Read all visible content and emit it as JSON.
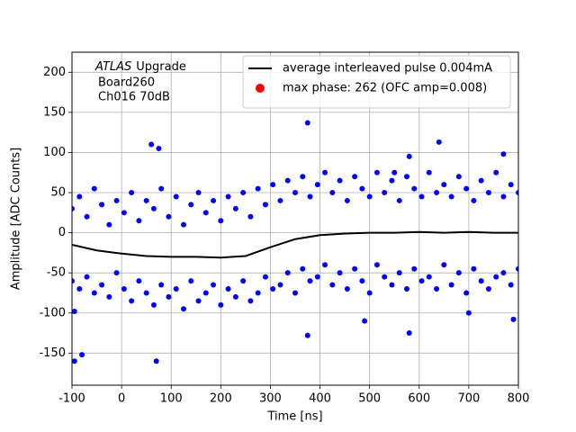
{
  "chart_data": {
    "type": "scatter",
    "xlabel": "Time [ns]",
    "ylabel": "Amplitude [ADC Counts]",
    "annotation": {
      "italic": "ATLAS",
      "text": "Upgrade",
      "lines": [
        "Board260",
        "Ch016 70dB"
      ]
    },
    "xlim": [
      -100,
      800
    ],
    "ylim": [
      -190,
      225
    ],
    "xticks": [
      -100,
      0,
      100,
      200,
      300,
      400,
      500,
      600,
      700,
      800
    ],
    "yticks": [
      -150,
      -100,
      -50,
      0,
      50,
      100,
      150,
      200
    ],
    "grid": true,
    "legend": "upper right",
    "series": [
      {
        "name": "blue",
        "color": "#0000ff",
        "kind": "points",
        "x": [
          -100,
          -100,
          -85,
          -85,
          -70,
          -70,
          -55,
          -55,
          -40,
          -40,
          -25,
          -25,
          -10,
          -10,
          5,
          5,
          20,
          20,
          35,
          35,
          50,
          50,
          65,
          65,
          80,
          80,
          95,
          95,
          110,
          110,
          125,
          125,
          140,
          140,
          155,
          155,
          170,
          170,
          185,
          185,
          200,
          200,
          215,
          215,
          230,
          230,
          245,
          245,
          260,
          260,
          275,
          275,
          290,
          290,
          305,
          305,
          320,
          320,
          335,
          335,
          350,
          350,
          365,
          365,
          380,
          380,
          395,
          395,
          410,
          410,
          425,
          425,
          440,
          440,
          455,
          455,
          470,
          470,
          485,
          485,
          500,
          500,
          515,
          515,
          530,
          530,
          545,
          545,
          560,
          560,
          575,
          575,
          590,
          590,
          605,
          605,
          620,
          620,
          635,
          635,
          650,
          650,
          665,
          665,
          680,
          680,
          695,
          695,
          710,
          710,
          725,
          725,
          740,
          740,
          755,
          755,
          770,
          770,
          785,
          785,
          800,
          800,
          -95,
          -80,
          70,
          375,
          60,
          75,
          580,
          640,
          770,
          550,
          -95,
          375,
          580,
          700,
          790,
          490
        ],
        "values": [
          30,
          -60,
          45,
          -70,
          20,
          -55,
          55,
          -75,
          35,
          -65,
          10,
          -80,
          40,
          -50,
          25,
          -70,
          50,
          -85,
          15,
          -60,
          40,
          -75,
          30,
          -90,
          55,
          -65,
          20,
          -80,
          45,
          -70,
          10,
          -95,
          35,
          -60,
          50,
          -85,
          25,
          -75,
          40,
          -65,
          15,
          -90,
          45,
          -70,
          30,
          -80,
          50,
          -60,
          20,
          -85,
          55,
          -75,
          35,
          -55,
          60,
          -70,
          40,
          -65,
          65,
          -50,
          50,
          -75,
          70,
          -45,
          45,
          -60,
          60,
          -55,
          75,
          -40,
          50,
          -65,
          65,
          -50,
          40,
          -70,
          70,
          -45,
          55,
          -60,
          45,
          -75,
          75,
          -40,
          50,
          -55,
          65,
          -65,
          40,
          -50,
          70,
          -70,
          55,
          -45,
          45,
          -60,
          75,
          -55,
          50,
          -70,
          60,
          -40,
          45,
          -65,
          70,
          -50,
          55,
          -75,
          40,
          -45,
          65,
          -60,
          50,
          -70,
          75,
          -55,
          45,
          -50,
          60,
          -65,
          50,
          -45,
          -160,
          -152,
          -160,
          137,
          110,
          105,
          95,
          113,
          98,
          75,
          -98,
          -128,
          -125,
          -100,
          -108,
          -110
        ]
      },
      {
        "name": "average interleaved pulse 0.004mA",
        "color": "#000000",
        "kind": "line",
        "x": [
          -100,
          -50,
          0,
          50,
          100,
          150,
          200,
          250,
          300,
          350,
          400,
          450,
          500,
          550,
          600,
          650,
          700,
          750,
          800
        ],
        "values": [
          -15,
          -22,
          -26,
          -29,
          -30,
          -30,
          -31,
          -29,
          -18,
          -8,
          -3,
          -1,
          0,
          0,
          1,
          0,
          1,
          0,
          0
        ]
      },
      {
        "name": "max phase: 262 (OFC amp=0.008)",
        "color": "#ff0000",
        "kind": "legend-point",
        "x": [],
        "values": []
      }
    ]
  }
}
